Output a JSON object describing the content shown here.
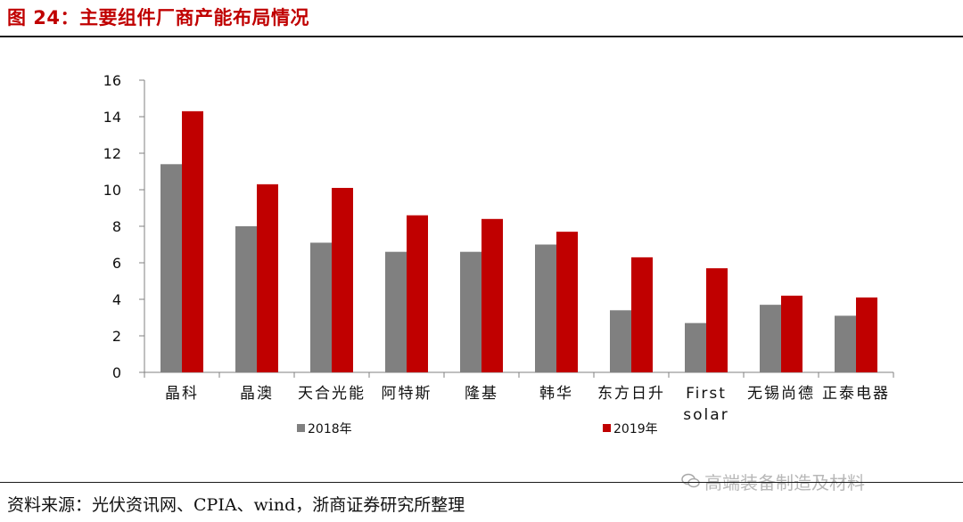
{
  "header": {
    "title": "图 24：主要组件厂商产能布局情况"
  },
  "footer": {
    "source": "资料来源：光伏资讯网、CPIA、wind，浙商证券研究所整理",
    "watermark": "高端装备制造及材料",
    "watermark_icon": "wechat-icon"
  },
  "chart_data": {
    "type": "bar",
    "categories": [
      "晶科",
      "晶澳",
      "天合光能",
      "阿特斯",
      "隆基",
      "韩华",
      "东方日升",
      "First solar",
      "无锡尚德",
      "正泰电器"
    ],
    "series": [
      {
        "name": "2018年",
        "color": "#808080",
        "values": [
          11.4,
          8.0,
          7.1,
          6.6,
          6.6,
          7.0,
          3.4,
          2.7,
          3.7,
          3.1
        ]
      },
      {
        "name": "2019年",
        "color": "#c00000",
        "values": [
          14.3,
          10.3,
          10.1,
          8.6,
          8.4,
          7.7,
          6.3,
          5.7,
          4.2,
          4.1
        ]
      }
    ],
    "ylim": [
      0,
      16
    ],
    "yticks": [
      0,
      2,
      4,
      6,
      8,
      10,
      12,
      14,
      16
    ],
    "legend_position": "bottom",
    "grid": false
  }
}
